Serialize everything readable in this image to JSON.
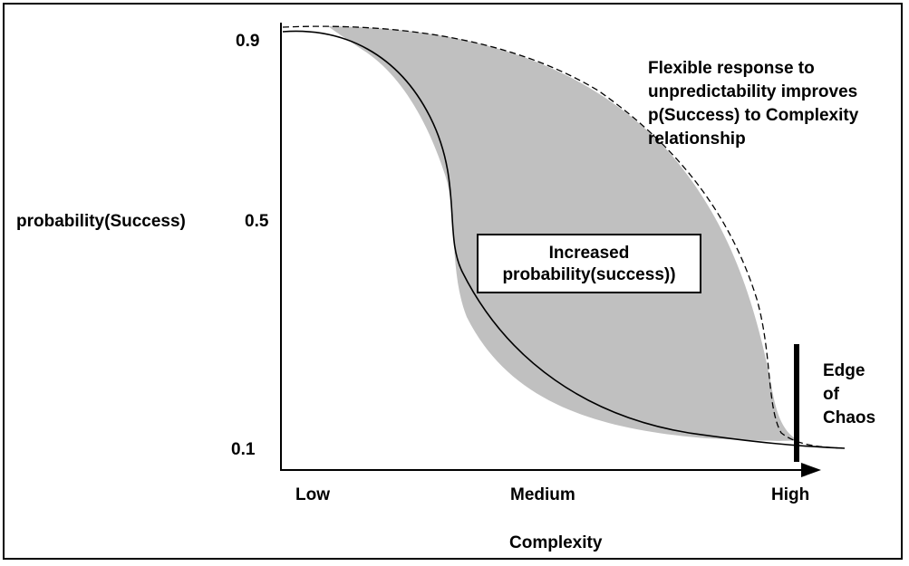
{
  "diagram": {
    "y_axis_label": "probability(Success)",
    "y_ticks": {
      "high": "0.9",
      "mid": "0.5",
      "low": "0.1"
    },
    "x_ticks": {
      "low": "Low",
      "medium": "Medium",
      "high": "High"
    },
    "x_axis_label": "Complexity",
    "annotation_lines": [
      "Flexible response to",
      "unpredictability improves",
      "p(Success) to Complexity",
      "relationship"
    ],
    "shaded_region_label_lines": [
      "Increased",
      "probability(success))"
    ],
    "edge_label_lines": [
      "Edge",
      "of",
      "Chaos"
    ],
    "colors": {
      "shaded_region": "#c0c0c0",
      "lines": "#000000",
      "background": "#ffffff"
    }
  }
}
